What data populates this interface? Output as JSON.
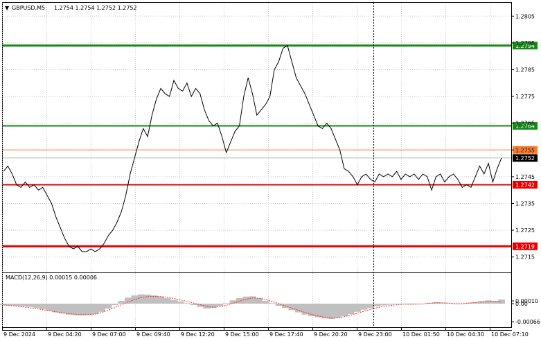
{
  "header": {
    "symbol": "GBPUSD,M5",
    "ohlc": "1.2754 1.2754 1.2752 1.2752"
  },
  "macd": {
    "label": "MACD(12,26,9) 0.00015 0.00006"
  },
  "colors": {
    "price_line": "#000000",
    "green_level": "#138a13",
    "red_level": "#e60000",
    "orange_level": "#ff7a2a",
    "macd_hist": "#c0c0c0",
    "macd_signal": "#ff2a2a",
    "grid": "#c8c8c8"
  },
  "chart_data": [
    {
      "type": "line",
      "name": "price",
      "y_range": [
        1.271,
        1.281
      ],
      "y_ticks": [
        "1.2805",
        "1.2795",
        "1.2785",
        "1.2775",
        "1.2765",
        "1.2755",
        "1.2745",
        "1.2735",
        "1.2725",
        "1.2715"
      ],
      "x_ticks": [
        "9 Dec 2024",
        "9 Dec 04:20",
        "9 Dec 07:00",
        "9 Dec 09:40",
        "9 Dec 12:20",
        "9 Dec 15:00",
        "9 Dec 17:40",
        "9 Dec 20:20",
        "9 Dec 23:00",
        "10 Dec 01:50",
        "10 Dec 04:30",
        "10 Dec 07:10"
      ],
      "levels": [
        {
          "label": "1.2794",
          "value": 1.2794,
          "kind": "green"
        },
        {
          "label": "1.2764",
          "value": 1.2764,
          "kind": "green"
        },
        {
          "label": "1.2755",
          "value": 1.2755,
          "kind": "orange"
        },
        {
          "label": "1.2752",
          "value": 1.2752,
          "kind": "current"
        },
        {
          "label": "1.2742",
          "value": 1.2742,
          "kind": "red"
        },
        {
          "label": "1.2719",
          "value": 1.2719,
          "kind": "red"
        }
      ],
      "values": [
        1.2747,
        1.2749,
        1.2746,
        1.2742,
        1.2741,
        1.2743,
        1.2741,
        1.2742,
        1.274,
        1.2741,
        1.2738,
        1.2735,
        1.273,
        1.2726,
        1.2722,
        1.2719,
        1.2718,
        1.2719,
        1.2717,
        1.2717,
        1.2718,
        1.2717,
        1.2718,
        1.272,
        1.2723,
        1.2725,
        1.2728,
        1.2732,
        1.2738,
        1.2746,
        1.2752,
        1.2758,
        1.2763,
        1.276,
        1.2768,
        1.2774,
        1.2778,
        1.2776,
        1.2775,
        1.2781,
        1.2778,
        1.2777,
        1.278,
        1.2775,
        1.2778,
        1.2776,
        1.277,
        1.2766,
        1.2764,
        1.2765,
        1.276,
        1.2754,
        1.2758,
        1.2762,
        1.2764,
        1.2775,
        1.2782,
        1.2776,
        1.2768,
        1.277,
        1.2772,
        1.2775,
        1.2785,
        1.2788,
        1.2793,
        1.2794,
        1.2788,
        1.2782,
        1.2779,
        1.2776,
        1.2772,
        1.2768,
        1.2764,
        1.2763,
        1.2765,
        1.2763,
        1.2759,
        1.2755,
        1.2748,
        1.2747,
        1.2745,
        1.2742,
        1.2745,
        1.2746,
        1.2744,
        1.2743,
        1.2746,
        1.2745,
        1.2746,
        1.2745,
        1.2747,
        1.2744,
        1.2746,
        1.2745,
        1.2746,
        1.2744,
        1.2746,
        1.2745,
        1.274,
        1.2745,
        1.2746,
        1.2743,
        1.2745,
        1.2746,
        1.2744,
        1.2741,
        1.2742,
        1.2741,
        1.2745,
        1.2749,
        1.2746,
        1.275,
        1.2743,
        1.2748,
        1.2752
      ]
    },
    {
      "type": "bar",
      "name": "MACD(12,26,9)",
      "y_range": [
        -0.0007,
        0.00012
      ],
      "y_ticks": [
        "0.00010",
        "0.00",
        "-0.00066"
      ],
      "histogram": [
        -5e-05,
        -6e-05,
        -8e-05,
        -0.0001,
        -0.00012,
        -0.00015,
        -0.0002,
        -0.00026,
        -0.00032,
        -0.00036,
        -0.0004,
        -0.00042,
        -0.00043,
        -0.00042,
        -0.00038,
        -0.0003,
        -0.00018,
        -5e-05,
        0.0001,
        0.00022,
        0.0003,
        0.00034,
        0.00033,
        0.0003,
        0.00026,
        0.0002,
        0.00014,
        8e-05,
        2e-05,
        -5e-05,
        -0.00012,
        -0.00018,
        -0.00016,
        -8e-05,
        2e-05,
        0.00012,
        0.0002,
        0.00026,
        0.00027,
        0.0002,
        0.0001,
        2e-05,
        -8e-05,
        -0.00016,
        -0.00024,
        -0.00032,
        -0.0004,
        -0.00046,
        -0.0005,
        -0.00054,
        -0.00056,
        -0.00052,
        -0.00046,
        -0.00038,
        -0.0003,
        -0.00022,
        -0.00016,
        -0.0001,
        -6e-05,
        -4e-05,
        -2e-05,
        -1e-05,
        -3e-05,
        -2e-05,
        0.0,
        3e-05,
        5e-05,
        3e-05,
        1e-05,
        -2e-05,
        -1e-05,
        3e-05,
        6e-05,
        9e-05,
        0.00012,
        0.0001,
        0.00015
      ],
      "signal": [
        -5e-05,
        -7e-05,
        -9e-05,
        -0.00012,
        -0.00015,
        -0.00018,
        -0.00022,
        -0.00026,
        -0.0003,
        -0.00034,
        -0.00037,
        -0.00039,
        -0.0004,
        -0.0004,
        -0.00038,
        -0.00032,
        -0.00024,
        -0.00014,
        -4e-05,
        6e-05,
        0.00015,
        0.00022,
        0.00026,
        0.00027,
        0.00026,
        0.00023,
        0.00019,
        0.00014,
        8e-05,
        2e-05,
        -4e-05,
        -0.0001,
        -0.00013,
        -0.00011,
        -6e-05,
        1e-05,
        9e-05,
        0.00016,
        0.00021,
        0.0002,
        0.00015,
        8e-05,
        0.0,
        -8e-05,
        -0.00016,
        -0.00024,
        -0.00032,
        -0.00039,
        -0.00045,
        -0.0005,
        -0.00053,
        -0.00052,
        -0.00048,
        -0.00042,
        -0.00035,
        -0.00028,
        -0.00021,
        -0.00015,
        -0.0001,
        -7e-05,
        -4e-05,
        -2e-05,
        -2e-05,
        -2e-05,
        -1e-05,
        1e-05,
        3e-05,
        3e-05,
        2e-05,
        0.0,
        0.0,
        2e-05,
        4e-05,
        6e-05,
        8e-05,
        8e-05,
        6e-05
      ]
    }
  ]
}
